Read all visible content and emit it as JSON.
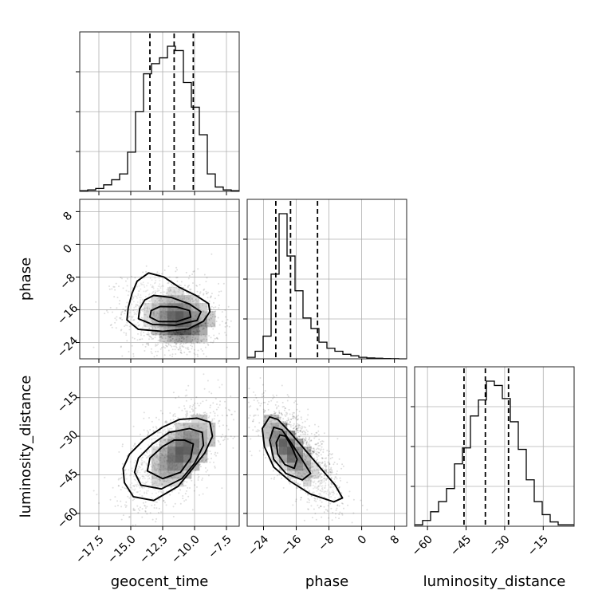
{
  "chart_data": {
    "type": "corner",
    "parameters": [
      "geocent_time",
      "phase",
      "luminosity_distance"
    ],
    "axis_labels": {
      "x": [
        "geocent_time",
        "phase",
        "luminosity_distance"
      ],
      "y": [
        "",
        "phase",
        "luminosity_distance"
      ]
    },
    "ranges": {
      "geocent_time": [
        -19.0,
        -6.5
      ],
      "phase": [
        -28.0,
        11.0
      ],
      "luminosity_distance": [
        -65.0,
        -3.0
      ]
    },
    "ticks": {
      "geocent_time": [
        -17.5,
        -15.0,
        -12.5,
        -10.0,
        -7.5
      ],
      "phase": [
        -24,
        -16,
        -8,
        0,
        8
      ],
      "luminosity_distance": [
        -60,
        -45,
        -30,
        -15
      ]
    },
    "tick_labels": {
      "geocent_time": [
        "−17.5",
        "−15.0",
        "−12.5",
        "−10.0",
        "−7.5"
      ],
      "phase": [
        "−24",
        "−16",
        "−8",
        "0",
        "8"
      ],
      "luminosity_distance": [
        "−60",
        "−45",
        "−30",
        "−15"
      ]
    },
    "grid": true,
    "histograms": [
      {
        "param": "geocent_time",
        "bin_edges": [
          -19.0,
          -18.375,
          -17.75,
          -17.125,
          -16.5,
          -15.875,
          -15.25,
          -14.625,
          -14.0,
          -13.375,
          -12.75,
          -12.125,
          -11.5,
          -10.875,
          -10.25,
          -9.625,
          -9.0,
          -8.375,
          -7.75,
          -7.125,
          -6.5
        ],
        "counts": [
          0.005,
          0.01,
          0.02,
          0.045,
          0.08,
          0.12,
          0.27,
          0.55,
          0.81,
          0.88,
          0.92,
          1.0,
          0.97,
          0.75,
          0.58,
          0.39,
          0.12,
          0.03,
          0.01,
          0.005
        ],
        "quantiles": [
          -13.5,
          -11.6,
          -10.1
        ]
      },
      {
        "param": "phase",
        "bin_edges": [
          -28.0,
          -26.05,
          -24.1,
          -22.15,
          -20.2,
          -18.25,
          -16.3,
          -14.35,
          -12.4,
          -10.45,
          -8.5,
          -6.55,
          -4.6,
          -2.65,
          -0.7,
          1.25,
          3.2,
          5.15,
          7.1,
          9.05,
          11.0
        ],
        "counts": [
          0.01,
          0.05,
          0.15,
          0.56,
          0.96,
          0.68,
          0.45,
          0.27,
          0.2,
          0.11,
          0.07,
          0.05,
          0.03,
          0.02,
          0.01,
          0.006,
          0.004,
          0.002,
          0.001,
          0.0
        ],
        "quantiles": [
          -21.0,
          -17.4,
          -10.8
        ]
      },
      {
        "param": "luminosity_distance",
        "bin_edges": [
          -65.0,
          -61.9,
          -58.8,
          -55.7,
          -52.6,
          -49.5,
          -46.4,
          -43.3,
          -40.2,
          -37.1,
          -34.0,
          -30.9,
          -27.8,
          -24.7,
          -21.6,
          -18.5,
          -15.4,
          -12.3,
          -9.2,
          -6.1,
          -3.0
        ],
        "counts": [
          0.01,
          0.04,
          0.1,
          0.17,
          0.26,
          0.43,
          0.54,
          0.76,
          0.87,
          1.0,
          0.97,
          0.88,
          0.72,
          0.53,
          0.32,
          0.17,
          0.08,
          0.03,
          0.01,
          0.01
        ],
        "quantiles": [
          -45.8,
          -37.5,
          -28.5
        ]
      }
    ],
    "joint": [
      {
        "x_param": "geocent_time",
        "y_param": "phase",
        "mean": [
          -11.8,
          -17.5
        ],
        "std": [
          1.9,
          4.8
        ],
        "rho": -0.15,
        "density_peak": [
          -11.2,
          -18.0
        ],
        "contours": [
          [
            [
              -13.6,
              -7.0
            ],
            [
              -12.4,
              -8.0
            ],
            [
              -11.2,
              -10.5
            ],
            [
              -9.9,
              -12.5
            ],
            [
              -8.9,
              -14.5
            ],
            [
              -8.8,
              -16.5
            ],
            [
              -9.3,
              -18.8
            ],
            [
              -10.5,
              -20.7
            ],
            [
              -12.5,
              -21.3
            ],
            [
              -14.4,
              -20.8
            ],
            [
              -15.3,
              -18.5
            ],
            [
              -15.2,
              -15.5
            ],
            [
              -14.9,
              -12.0
            ],
            [
              -14.5,
              -9.0
            ]
          ],
          [
            [
              -13.2,
              -12.5
            ],
            [
              -11.8,
              -13.0
            ],
            [
              -10.4,
              -14.6
            ],
            [
              -9.5,
              -16.5
            ],
            [
              -9.8,
              -18.6
            ],
            [
              -11.5,
              -19.8
            ],
            [
              -13.3,
              -19.6
            ],
            [
              -14.4,
              -18.2
            ],
            [
              -14.3,
              -15.8
            ],
            [
              -13.9,
              -13.6
            ]
          ],
          [
            [
              -12.7,
              -15.2
            ],
            [
              -11.4,
              -15.3
            ],
            [
              -10.4,
              -16.2
            ],
            [
              -10.3,
              -17.8
            ],
            [
              -11.4,
              -18.9
            ],
            [
              -12.8,
              -18.9
            ],
            [
              -13.5,
              -17.8
            ],
            [
              -13.4,
              -16.2
            ]
          ]
        ]
      },
      {
        "x_param": "geocent_time",
        "y_param": "luminosity_distance",
        "mean": [
          -11.8,
          -37.5
        ],
        "std": [
          1.9,
          10.0
        ],
        "rho": 0.55,
        "density_peak": [
          -11.0,
          -36.0
        ],
        "contours": [
          [
            [
              -9.8,
              -23.0
            ],
            [
              -8.8,
              -24.5
            ],
            [
              -8.6,
              -30.0
            ],
            [
              -9.2,
              -36.5
            ],
            [
              -10.3,
              -43.5
            ],
            [
              -11.3,
              -49.5
            ],
            [
              -13.2,
              -55.0
            ],
            [
              -14.8,
              -53.5
            ],
            [
              -15.5,
              -48.0
            ],
            [
              -15.6,
              -42.5
            ],
            [
              -15.1,
              -37.0
            ],
            [
              -14.0,
              -31.5
            ],
            [
              -12.5,
              -26.5
            ],
            [
              -11.2,
              -23.5
            ]
          ],
          [
            [
              -10.4,
              -27.0
            ],
            [
              -9.4,
              -28.5
            ],
            [
              -9.3,
              -33.5
            ],
            [
              -10.0,
              -40.5
            ],
            [
              -11.0,
              -46.5
            ],
            [
              -12.6,
              -50.5
            ],
            [
              -14.2,
              -49.0
            ],
            [
              -14.7,
              -44.0
            ],
            [
              -14.4,
              -38.5
            ],
            [
              -13.3,
              -33.0
            ],
            [
              -12.0,
              -28.5
            ]
          ],
          [
            [
              -10.8,
              -31.5
            ],
            [
              -10.1,
              -33.0
            ],
            [
              -10.3,
              -38.5
            ],
            [
              -11.1,
              -44.0
            ],
            [
              -12.5,
              -46.5
            ],
            [
              -13.7,
              -43.5
            ],
            [
              -13.5,
              -38.5
            ],
            [
              -12.5,
              -34.0
            ],
            [
              -11.6,
              -31.5
            ]
          ]
        ]
      },
      {
        "x_param": "phase",
        "y_param": "luminosity_distance",
        "mean": [
          -15.0,
          -37.5
        ],
        "std": [
          5.0,
          10.0
        ],
        "rho": -0.72,
        "density_peak": [
          -18.0,
          -35.0
        ],
        "contours": [
          [
            [
              -22.5,
              -22.5
            ],
            [
              -20.5,
              -23.5
            ],
            [
              -17.8,
              -28.0
            ],
            [
              -14.0,
              -35.0
            ],
            [
              -10.0,
              -42.5
            ],
            [
              -6.5,
              -49.0
            ],
            [
              -4.7,
              -54.0
            ],
            [
              -6.8,
              -55.5
            ],
            [
              -12.5,
              -52.5
            ],
            [
              -17.5,
              -47.5
            ],
            [
              -21.5,
              -42.0
            ],
            [
              -23.8,
              -34.0
            ],
            [
              -24.3,
              -27.0
            ]
          ],
          [
            [
              -21.5,
              -26.5
            ],
            [
              -19.5,
              -27.5
            ],
            [
              -17.3,
              -32.5
            ],
            [
              -14.8,
              -38.5
            ],
            [
              -12.5,
              -44.5
            ],
            [
              -14.5,
              -47.0
            ],
            [
              -18.5,
              -44.5
            ],
            [
              -21.5,
              -39.0
            ],
            [
              -22.5,
              -31.5
            ]
          ],
          [
            [
              -20.0,
              -29.5
            ],
            [
              -18.6,
              -30.0
            ],
            [
              -17.0,
              -34.5
            ],
            [
              -15.8,
              -39.0
            ],
            [
              -16.5,
              -42.5
            ],
            [
              -18.8,
              -41.0
            ],
            [
              -20.5,
              -37.0
            ],
            [
              -20.9,
              -32.5
            ]
          ]
        ]
      }
    ]
  }
}
